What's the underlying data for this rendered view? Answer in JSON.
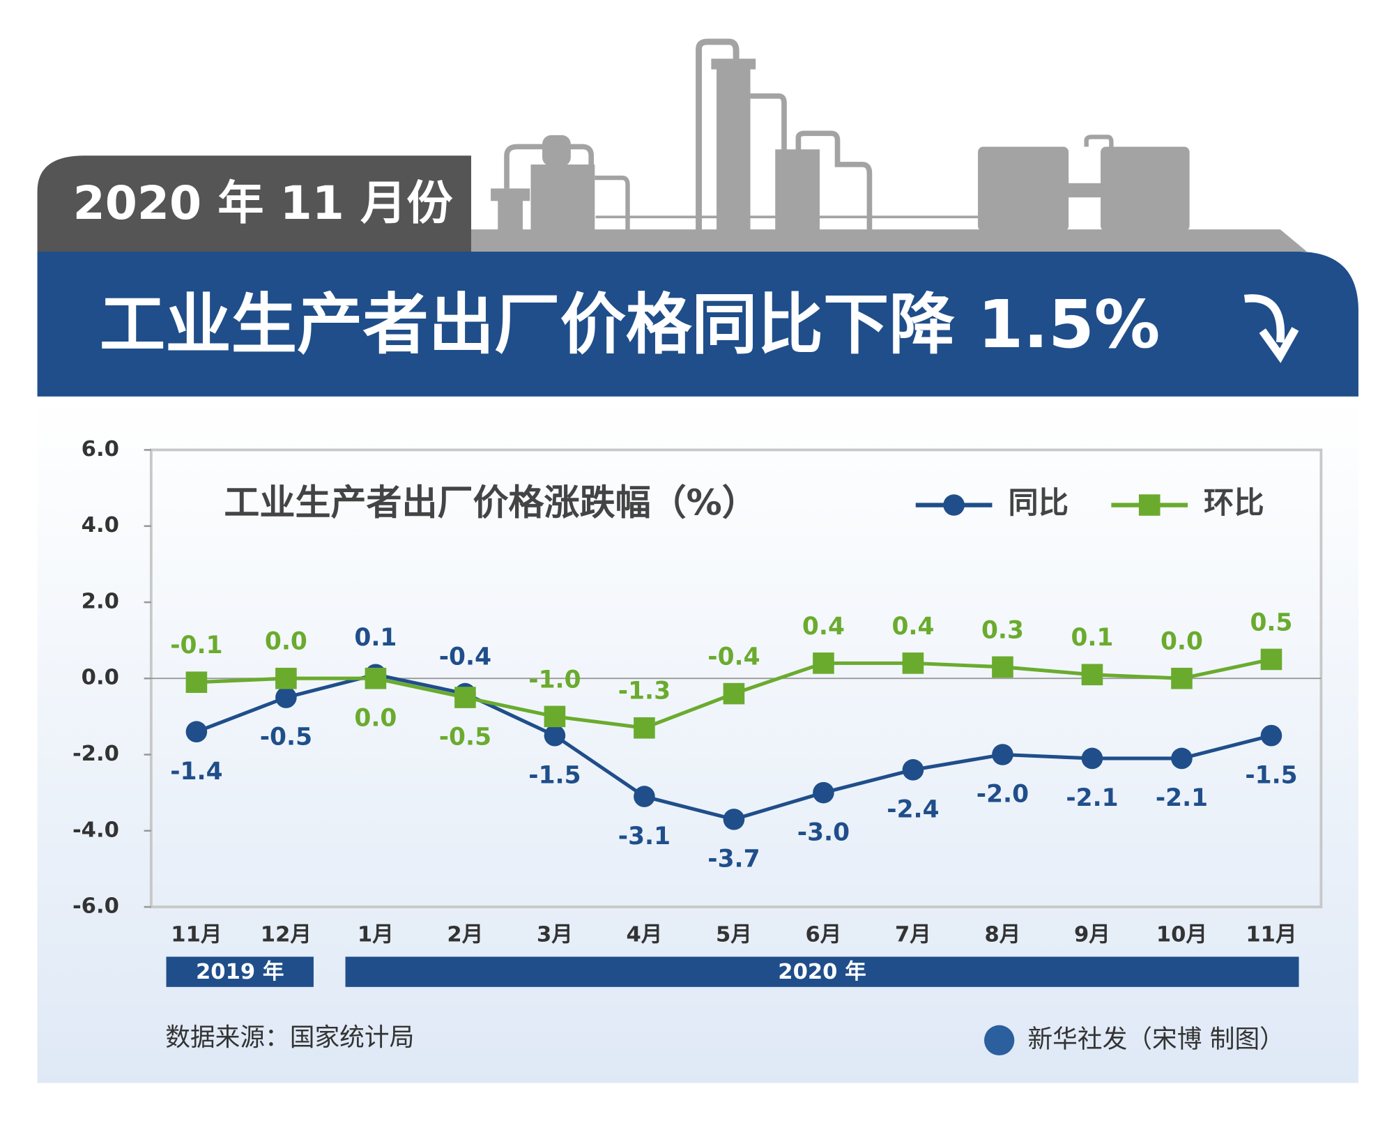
{
  "header": {
    "date": "2020 年 11 月份",
    "title": "工业生产者出厂价格同比下降 1.5%"
  },
  "chart_data": {
    "type": "line",
    "title": "工业生产者出厂价格涨跌幅（%）",
    "categories": [
      "11月",
      "12月",
      "1月",
      "2月",
      "3月",
      "4月",
      "5月",
      "6月",
      "7月",
      "8月",
      "9月",
      "10月",
      "11月"
    ],
    "years": [
      {
        "label": "2019 年",
        "from": 0,
        "to": 1
      },
      {
        "label": "2020 年",
        "from": 2,
        "to": 12
      }
    ],
    "series": [
      {
        "name": "同比",
        "color": "#1f4e8a",
        "marker": "circle",
        "values": [
          -1.4,
          -0.5,
          0.1,
          -0.4,
          -1.5,
          -3.1,
          -3.7,
          -3.0,
          -2.4,
          -2.0,
          -2.1,
          -2.1,
          -1.5
        ],
        "value_labels": [
          "-1.4",
          "-0.5",
          "0.1",
          "-0.4",
          "-1.5",
          "-3.1",
          "-3.7",
          "-3.0",
          "-2.4",
          "-2.0",
          "-2.1",
          "-2.1",
          "-1.5"
        ]
      },
      {
        "name": "环比",
        "color": "#6aab2e",
        "marker": "square",
        "values": [
          -0.1,
          0.0,
          0.0,
          -0.5,
          -1.0,
          -1.3,
          -0.4,
          0.4,
          0.4,
          0.3,
          0.1,
          0.0,
          0.5
        ],
        "value_labels": [
          "-0.1",
          "0.0",
          "0.0",
          "-0.5",
          "-1.0",
          "-1.3",
          "-0.4",
          "0.4",
          "0.4",
          "0.3",
          "0.1",
          "0.0",
          "0.5"
        ]
      }
    ],
    "ylim": [
      -6,
      6
    ],
    "yticks": [
      {
        "value": 6,
        "label": "6.0"
      },
      {
        "value": 4,
        "label": "4.0"
      },
      {
        "value": 2,
        "label": "2.0"
      },
      {
        "value": 0,
        "label": "0.0"
      },
      {
        "value": -2,
        "label": "-2.0"
      },
      {
        "value": -4,
        "label": "-4.0"
      },
      {
        "value": -6,
        "label": "-6.0"
      }
    ],
    "zero_line": true,
    "legend": "top-right"
  },
  "footer": {
    "source": "数据来源：国家统计局",
    "credit": "新华社发（宋博 制图）"
  }
}
